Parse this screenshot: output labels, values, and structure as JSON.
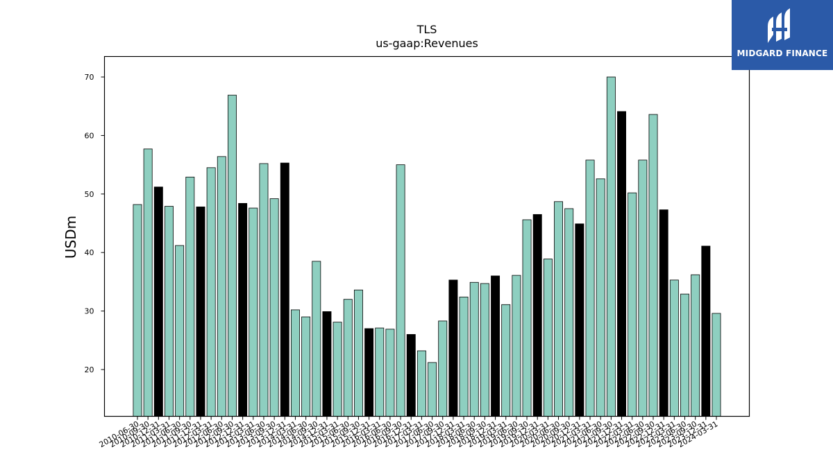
{
  "logo": {
    "text": "MIDGARD FINANCE"
  },
  "chart_data": {
    "type": "bar",
    "title": "TLS",
    "subtitle": "us-gaap:Revenues",
    "ylabel": "USDm",
    "xlabel": "",
    "ylim": [
      12,
      73.5
    ],
    "yticks": [
      20,
      30,
      40,
      50,
      60,
      70
    ],
    "grid": false,
    "colors": {
      "default": "#8ecfc0",
      "highlight": "#000000",
      "edge": "#000000"
    },
    "categories": [
      "2010-06-30",
      "2010-09-30",
      "2010-12-31",
      "2011-03-31",
      "2011-06-30",
      "2011-09-30",
      "2011-12-31",
      "2012-03-31",
      "2012-06-30",
      "2012-09-30",
      "2012-12-31",
      "2013-03-31",
      "2013-06-30",
      "2013-09-30",
      "2013-12-31",
      "2014-03-31",
      "2014-06-30",
      "2014-09-30",
      "2014-12-31",
      "2015-03-31",
      "2015-06-30",
      "2015-09-30",
      "2015-12-31",
      "2016-03-31",
      "2016-06-30",
      "2016-09-30",
      "2016-12-31",
      "2017-03-31",
      "2017-06-30",
      "2017-09-30",
      "2017-12-31",
      "2018-03-31",
      "2018-06-30",
      "2018-09-30",
      "2018-12-31",
      "2019-03-31",
      "2019-06-30",
      "2019-09-30",
      "2019-12-31",
      "2020-03-31",
      "2020-06-30",
      "2020-09-30",
      "2020-12-31",
      "2021-03-31",
      "2021-06-30",
      "2021-09-30",
      "2021-12-31",
      "2022-03-31",
      "2022-06-30",
      "2022-09-30",
      "2022-12-31",
      "2023-03-31",
      "2023-06-30",
      "2023-09-30",
      "2023-12-31",
      "2024-03-31"
    ],
    "values": [
      48.2,
      57.7,
      51.2,
      47.9,
      41.2,
      52.9,
      47.8,
      54.5,
      56.4,
      66.9,
      48.4,
      47.6,
      55.2,
      49.2,
      55.3,
      30.2,
      29.0,
      38.5,
      29.9,
      28.1,
      32.0,
      33.6,
      27.0,
      27.1,
      26.9,
      55.0,
      26.0,
      23.2,
      21.2,
      28.3,
      35.3,
      32.4,
      34.9,
      34.7,
      36.0,
      31.1,
      36.1,
      45.6,
      46.5,
      38.9,
      48.7,
      47.5,
      44.9,
      55.8,
      52.6,
      70.0,
      64.1,
      50.2,
      55.8,
      63.6,
      47.3,
      35.3,
      32.9,
      36.2,
      41.1,
      29.6
    ],
    "highlight": [
      false,
      false,
      true,
      false,
      false,
      false,
      true,
      false,
      false,
      false,
      true,
      false,
      false,
      false,
      true,
      false,
      false,
      false,
      true,
      false,
      false,
      false,
      true,
      false,
      false,
      false,
      true,
      false,
      false,
      false,
      true,
      false,
      false,
      false,
      true,
      false,
      false,
      false,
      true,
      false,
      false,
      false,
      true,
      false,
      false,
      false,
      true,
      false,
      false,
      false,
      true,
      false,
      false,
      false,
      true,
      false
    ]
  }
}
